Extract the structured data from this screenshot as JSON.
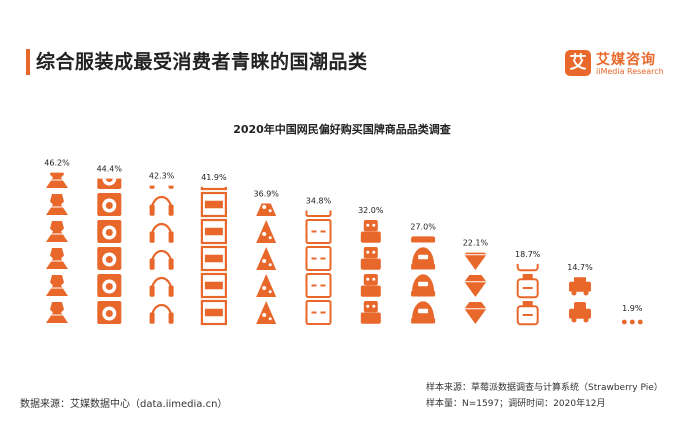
{
  "header": {
    "title": "综合服装成最受消费者青睐的国潮品类"
  },
  "logo": {
    "mark": "艾",
    "name_cn": "艾媒咨询",
    "name_en": "iiMedia Research"
  },
  "chart_data": {
    "type": "bar",
    "title": "2020年中国网民偏好购买国牌商品品类调查",
    "categories": [
      "",
      "",
      "",
      "",
      "",
      "",
      "",
      "",
      "",
      "",
      "",
      ""
    ],
    "values": [
      46.2,
      44.4,
      42.3,
      41.9,
      36.9,
      34.8,
      32.0,
      27.0,
      22.1,
      18.7,
      14.7,
      1.9
    ],
    "value_labels": [
      "46.2%",
      "44.4%",
      "42.3%",
      "41.9%",
      "36.9%",
      "34.8%",
      "32.0%",
      "27.0%",
      "22.1%",
      "18.7%",
      "14.7%",
      "1.9%"
    ],
    "icons": [
      "dress-icon",
      "washing-machine-icon",
      "headphones-icon",
      "shelf-icon",
      "snack-icon",
      "calculator-icon",
      "robot-toy-icon",
      "helmet-icon",
      "diamond-icon",
      "bottle-icon",
      "car-icon",
      "dots-icon"
    ],
    "unit": "%",
    "ylim": [
      0,
      50
    ],
    "color": "#e8672b",
    "grid": false,
    "legend": "none"
  },
  "footer": {
    "source": "数据来源：艾媒数据中心（data.iimedia.cn）",
    "sample_source": "样本来源：草莓派数据调查与计算系统（Strawberry Pie）",
    "sample_size": "样本量：N=1597；调研时间：2020年12月"
  }
}
